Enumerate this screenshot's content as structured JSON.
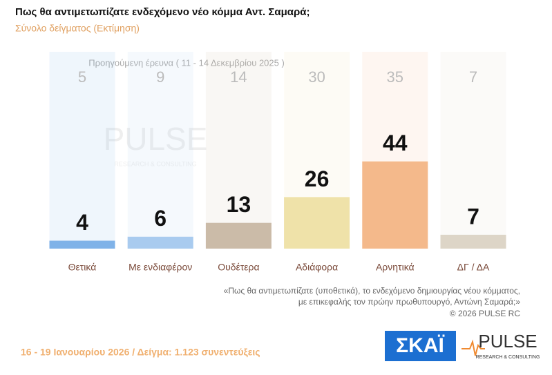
{
  "chart_data": {
    "type": "bar",
    "title": "Πως θα αντιμετωπίζατε ενδεχόμενο νέο κόμμα Αντ. Σαμαρά;",
    "subtitle": "Σύνολο δείγματος  (Εκτίμηση)",
    "previous_label": "Προηγούμενη έρευνα ( 11 - 14 Δεκεμβρίου 2025 )",
    "categories": [
      "Θετικά",
      "Με ενδιαφέρον",
      "Ουδέτερα",
      "Αδιάφορα",
      "Αρνητικά",
      "ΔΓ / ΔΑ"
    ],
    "values": [
      4,
      6,
      13,
      26,
      44,
      7
    ],
    "previous_values": [
      5,
      9,
      14,
      30,
      35,
      7
    ],
    "colors": [
      "#7fb2e8",
      "#a9cbef",
      "#cbbba8",
      "#efe2a9",
      "#f4b98b",
      "#ddd5c7"
    ],
    "footnote": [
      "«Πως θα αντιμετωπίζατε (υποθετικά), το ενδεχόμενο δημιουργίας νέου κόμματος,",
      "με επικεφαλής τον πρώην πρωθυπουργό, Αντώνη Σαμαρά;»"
    ],
    "copyright": "©  2026  PULSE RC",
    "fieldwork": "16 - 19 Ιανουαρίου 2026  /  Δείγμα:  1.123 συνεντεύξεις",
    "logo_skai": "ΣΚΑΪ",
    "logo_pulse": "PULSE",
    "logo_pulse_sub": "RESEARCH & CONSULTING"
  }
}
